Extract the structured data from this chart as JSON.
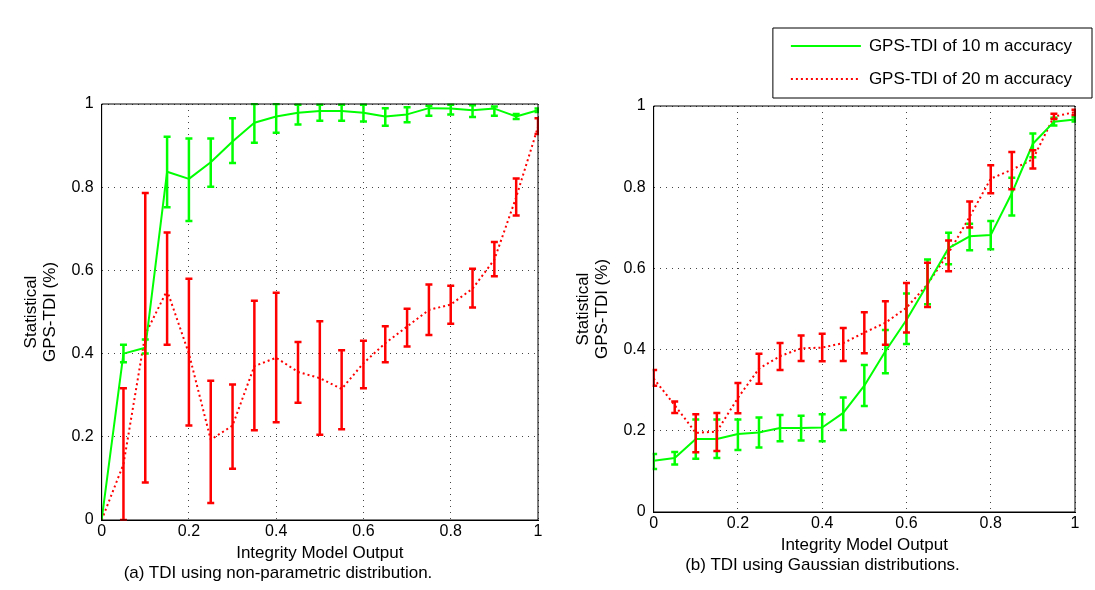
{
  "chart_data": [
    {
      "type": "line",
      "title": "(a) TDI using non-parametric distribution.",
      "xlabel": "Integrity Model Output",
      "ylabel": "Statistical\nGPS-TDI (%)",
      "x": [
        0,
        0.05,
        0.1,
        0.15,
        0.2,
        0.25,
        0.3,
        0.35,
        0.4,
        0.45,
        0.5,
        0.55,
        0.6,
        0.65,
        0.7,
        0.75,
        0.8,
        0.85,
        0.9,
        0.95,
        1
      ],
      "series": [
        {
          "color": "#00ff00",
          "line_style": "solid",
          "values": [
            0,
            0.4,
            0.414,
            0.837,
            0.82,
            0.86,
            0.91,
            0.955,
            0.97,
            0.979,
            0.983,
            0.983,
            0.979,
            0.97,
            0.975,
            0.99,
            0.989,
            0.985,
            0.989,
            0.97,
            0.985
          ],
          "errors": [
            null,
            [
              0.379,
              0.421
            ],
            [
              0.4,
              0.434
            ],
            [
              0.752,
              0.921
            ],
            [
              0.719,
              0.917
            ],
            [
              0.801,
              0.917
            ],
            [
              0.858,
              0.966
            ],
            [
              0.907,
              1
            ],
            [
              0.931,
              1
            ],
            [
              0.951,
              0.998
            ],
            [
              0.96,
              0.998
            ],
            [
              0.96,
              0.998
            ],
            [
              0.958,
              0.998
            ],
            [
              0.948,
              0.99
            ],
            [
              0.956,
              0.992
            ],
            [
              0.972,
              0.996
            ],
            [
              0.975,
              0.998
            ],
            [
              0.969,
              0.997
            ],
            [
              0.972,
              0.994
            ],
            [
              0.964,
              0.976
            ],
            [
              0.981,
              0.989
            ]
          ]
        },
        {
          "color": "#ff0000",
          "line_style": "dotted",
          "values": [
            0,
            0.134,
            0.446,
            0.552,
            0.4,
            0.193,
            0.227,
            0.37,
            0.39,
            0.356,
            0.341,
            0.315,
            0.377,
            0.425,
            0.465,
            0.505,
            0.518,
            0.556,
            0.626,
            0.776,
            0.945
          ],
          "errors": [
            null,
            [
              0,
              0.317
            ],
            [
              0.09,
              0.786
            ],
            [
              0.421,
              0.691
            ],
            [
              0.227,
              0.58
            ],
            [
              0.041,
              0.335
            ],
            [
              0.123,
              0.326
            ],
            [
              0.216,
              0.527
            ],
            [
              0.235,
              0.546
            ],
            [
              0.282,
              0.428
            ],
            [
              0.205,
              0.478
            ],
            [
              0.218,
              0.408
            ],
            [
              0.317,
              0.431
            ],
            [
              0.379,
              0.466
            ],
            [
              0.417,
              0.508
            ],
            [
              0.445,
              0.566
            ],
            [
              0.472,
              0.563
            ],
            [
              0.511,
              0.604
            ],
            [
              0.586,
              0.668
            ],
            [
              0.732,
              0.821
            ],
            [
              0.928,
              0.966
            ]
          ]
        }
      ],
      "xlim": [
        0,
        1
      ],
      "xticks": [
        0,
        0.2,
        0.4,
        0.6,
        0.8,
        1
      ],
      "ylim": [
        0,
        1
      ],
      "yticks": [
        0,
        0.2,
        0.4,
        0.6,
        0.8,
        1
      ],
      "grid": true,
      "marker": "none"
    },
    {
      "type": "line",
      "title": "(b) TDI using Gaussian distributions.",
      "xlabel": "Integrity Model Output",
      "ylabel": "Statistical\nGPS-TDI (%)",
      "x": [
        0,
        0.05,
        0.1,
        0.15,
        0.2,
        0.25,
        0.3,
        0.35,
        0.4,
        0.45,
        0.5,
        0.55,
        0.6,
        0.65,
        0.7,
        0.75,
        0.8,
        0.85,
        0.9,
        0.95,
        1
      ],
      "series": [
        {
          "name": "GPS-TDI of 10 m accuracy",
          "color": "#00ff00",
          "line_style": "solid",
          "values": [
            0.126,
            0.133,
            0.18,
            0.18,
            0.192,
            0.196,
            0.207,
            0.207,
            0.208,
            0.244,
            0.311,
            0.396,
            0.473,
            0.561,
            0.65,
            0.679,
            0.682,
            0.785,
            0.907,
            0.961,
            0.967
          ],
          "errors": [
            [
              0.106,
              0.143
            ],
            [
              0.117,
              0.148
            ],
            [
              0.131,
              0.228
            ],
            [
              0.133,
              0.228
            ],
            [
              0.153,
              0.228
            ],
            [
              0.159,
              0.233
            ],
            [
              0.174,
              0.239
            ],
            [
              0.176,
              0.237
            ],
            [
              0.174,
              0.241
            ],
            [
              0.202,
              0.282
            ],
            [
              0.261,
              0.362
            ],
            [
              0.342,
              0.448
            ],
            [
              0.414,
              0.538
            ],
            [
              0.512,
              0.622
            ],
            [
              0.61,
              0.688
            ],
            [
              0.645,
              0.71
            ],
            [
              0.647,
              0.717
            ],
            [
              0.73,
              0.823
            ],
            [
              0.874,
              0.932
            ],
            [
              0.952,
              0.971
            ],
            [
              0.962,
              0.972
            ]
          ]
        },
        {
          "name": "GPS-TDI of 20 m accuracy",
          "color": "#ff0000",
          "line_style": "dotted",
          "values": [
            0.329,
            0.263,
            0.195,
            0.198,
            0.281,
            0.353,
            0.384,
            0.403,
            0.405,
            0.416,
            0.442,
            0.466,
            0.503,
            0.561,
            0.638,
            0.727,
            0.821,
            0.843,
            0.869,
            0.974,
            0.985
          ],
          "errors": [
            [
              0.311,
              0.35
            ],
            [
              0.244,
              0.272
            ],
            [
              0.147,
              0.241
            ],
            [
              0.15,
              0.244
            ],
            [
              0.243,
              0.318
            ],
            [
              0.316,
              0.39
            ],
            [
              0.35,
              0.416
            ],
            [
              0.372,
              0.435
            ],
            [
              0.371,
              0.439
            ],
            [
              0.372,
              0.453
            ],
            [
              0.391,
              0.492
            ],
            [
              0.412,
              0.519
            ],
            [
              0.442,
              0.564
            ],
            [
              0.505,
              0.614
            ],
            [
              0.593,
              0.669
            ],
            [
              0.701,
              0.765
            ],
            [
              0.785,
              0.854
            ],
            [
              0.795,
              0.887
            ],
            [
              0.846,
              0.891
            ],
            [
              0.968,
              0.981
            ],
            [
              0.978,
              0.991
            ]
          ]
        }
      ],
      "xlim": [
        0,
        1
      ],
      "xticks": [
        0,
        0.2,
        0.4,
        0.6,
        0.8,
        1
      ],
      "ylim": [
        0,
        1
      ],
      "yticks": [
        0,
        0.2,
        0.4,
        0.6,
        0.8,
        1
      ],
      "grid": true,
      "marker": "none",
      "legend": "top right"
    }
  ]
}
